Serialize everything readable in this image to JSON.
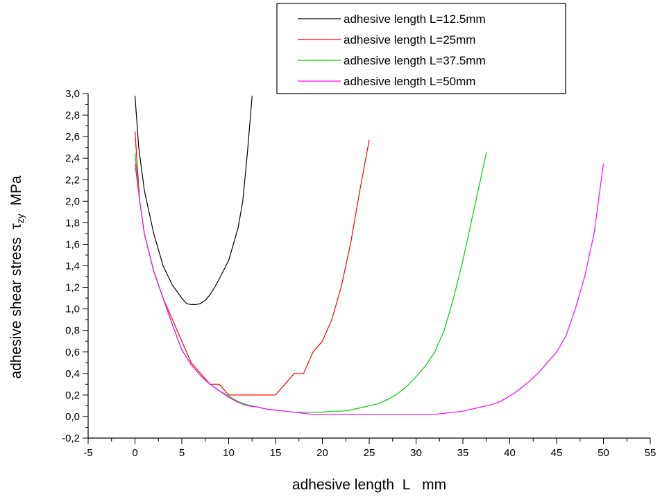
{
  "chart_data": {
    "type": "line",
    "title": "",
    "xlabel": "adhesive length  L   mm",
    "ylabel": {
      "prefix": "adhesive shear stress  ",
      "symbol": "τ",
      "subscript": "zy",
      "suffix": "  MPa"
    },
    "xlim": [
      -5,
      55
    ],
    "ylim": [
      -0.2,
      3.0
    ],
    "x_ticks": [
      "-5",
      "0",
      "5",
      "10",
      "15",
      "20",
      "25",
      "30",
      "35",
      "40",
      "45",
      "50",
      "55"
    ],
    "y_ticks": [
      "-0,2",
      "0,0",
      "0,2",
      "0,4",
      "0,6",
      "0,8",
      "1,0",
      "1,2",
      "1,4",
      "1,6",
      "1,8",
      "2,0",
      "2,2",
      "2,4",
      "2,6",
      "2,8",
      "3,0"
    ],
    "legend_position": "top-right",
    "series": [
      {
        "name": "adhesive length L=12.5mm",
        "color": "#000000",
        "x": [
          0,
          0.4,
          1,
          2,
          3,
          4,
          5,
          5.5,
          6,
          6.5,
          7,
          7.5,
          8,
          8.5,
          9,
          10,
          11,
          11.5,
          12,
          12.5
        ],
        "y": [
          2.98,
          2.5,
          2.1,
          1.7,
          1.4,
          1.22,
          1.1,
          1.05,
          1.04,
          1.04,
          1.05,
          1.08,
          1.13,
          1.2,
          1.28,
          1.45,
          1.75,
          2.0,
          2.45,
          2.98
        ]
      },
      {
        "name": "adhesive length L=25mm",
        "color": "#ff0000",
        "x": [
          0,
          0.5,
          1,
          2,
          3,
          4,
          5,
          6,
          7,
          8,
          9,
          10,
          11,
          12,
          13,
          14,
          15,
          16,
          17,
          18,
          19,
          20,
          21,
          22,
          23,
          24,
          25
        ],
        "y": [
          2.65,
          2.0,
          1.7,
          1.35,
          1.1,
          0.9,
          0.7,
          0.5,
          0.4,
          0.3,
          0.3,
          0.2,
          0.2,
          0.2,
          0.2,
          0.2,
          0.2,
          0.3,
          0.4,
          0.4,
          0.6,
          0.7,
          0.9,
          1.2,
          1.6,
          2.1,
          2.57
        ]
      },
      {
        "name": "adhesive length L=37.5mm",
        "color": "#00cc00",
        "x": [
          0,
          0.5,
          1,
          2,
          3,
          4,
          5,
          6,
          7,
          8,
          9,
          10,
          11,
          12,
          13,
          14,
          15,
          16,
          17,
          18,
          19,
          20,
          21,
          22,
          23,
          24,
          25,
          26,
          27,
          28,
          29,
          30,
          31,
          32,
          33,
          34,
          35,
          36,
          37,
          37.5
        ],
        "y": [
          2.45,
          2.0,
          1.7,
          1.35,
          1.1,
          0.85,
          0.62,
          0.48,
          0.38,
          0.3,
          0.24,
          0.19,
          0.14,
          0.11,
          0.09,
          0.07,
          0.06,
          0.05,
          0.04,
          0.04,
          0.04,
          0.04,
          0.05,
          0.05,
          0.06,
          0.08,
          0.1,
          0.12,
          0.16,
          0.21,
          0.28,
          0.37,
          0.47,
          0.6,
          0.8,
          1.1,
          1.45,
          1.85,
          2.25,
          2.45
        ]
      },
      {
        "name": "adhesive length L=50mm",
        "color": "#ff00ff",
        "x": [
          0,
          0.5,
          1,
          2,
          3,
          4,
          5,
          6,
          7,
          8,
          9,
          10,
          11,
          12,
          13,
          14,
          15,
          16,
          17,
          18,
          19,
          20,
          22,
          24,
          26,
          28,
          30,
          31,
          32,
          33,
          34,
          35,
          36,
          37,
          38,
          39,
          40,
          41,
          42,
          43,
          44,
          45,
          46,
          47,
          48,
          49,
          50
        ],
        "y": [
          2.35,
          2.0,
          1.7,
          1.35,
          1.1,
          0.85,
          0.62,
          0.48,
          0.38,
          0.3,
          0.24,
          0.18,
          0.13,
          0.1,
          0.09,
          0.07,
          0.06,
          0.05,
          0.04,
          0.03,
          0.02,
          0.02,
          0.02,
          0.02,
          0.02,
          0.02,
          0.02,
          0.02,
          0.02,
          0.03,
          0.04,
          0.05,
          0.07,
          0.09,
          0.11,
          0.14,
          0.19,
          0.25,
          0.32,
          0.4,
          0.5,
          0.6,
          0.75,
          1.0,
          1.3,
          1.7,
          2.35
        ]
      }
    ]
  }
}
